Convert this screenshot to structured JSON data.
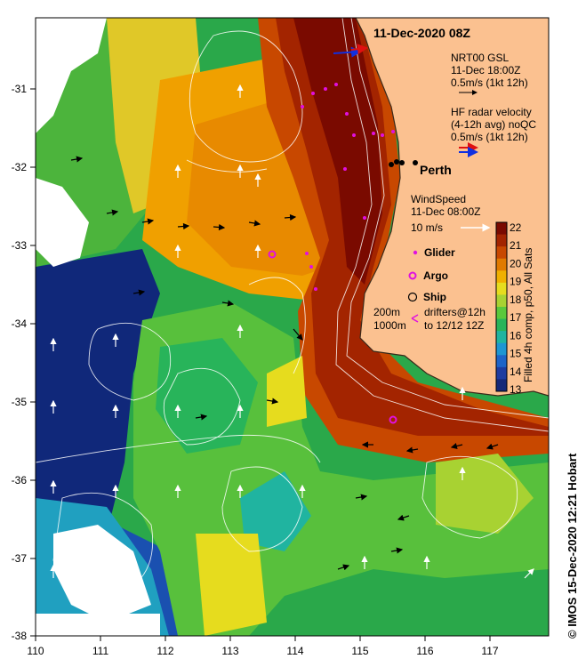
{
  "title": "11-Dec-2020 08Z",
  "city": "Perth",
  "axes": {
    "x_ticks": [
      "110",
      "111",
      "112",
      "113",
      "114",
      "115",
      "116",
      "117"
    ],
    "y_ticks": [
      "-31",
      "-32",
      "-33",
      "-34",
      "-35",
      "-36",
      "-37",
      "-38"
    ]
  },
  "legend": {
    "gsl": [
      "NRT00 GSL",
      "11-Dec 18:00Z",
      "0.5m/s (1kt 12h)"
    ],
    "hf": [
      "HF radar velocity",
      "(4-12h avg) noQC",
      "0.5m/s (1kt 12h)"
    ],
    "wind": [
      "WindSpeed",
      "11-Dec 08:00Z",
      "10 m/s"
    ],
    "glider": "Glider",
    "argo": "Argo",
    "ship": "Ship",
    "depth_200": "200m",
    "depth_1000": "1000m",
    "drifters_1": "drifters@12h",
    "drifters_2": "to 12/12 12Z"
  },
  "colorbar": {
    "label": "Filled 4h comp, p50, All Sats",
    "ticks": [
      "22",
      "21",
      "20",
      "19",
      "18",
      "17",
      "16",
      "15",
      "14",
      "13"
    ],
    "colors": [
      "#7a0a00",
      "#a32400",
      "#c84800",
      "#e07a00",
      "#f0b000",
      "#e6dc1e",
      "#a8d232",
      "#5ac83c",
      "#28b45a",
      "#20b4a0",
      "#1e96d2",
      "#1e64c8",
      "#1e3ca0",
      "#142878"
    ]
  },
  "credit": "© IMOS 15-Dec-2020 12:21 Hobart",
  "colors": {
    "land": "#fbc190",
    "coast": "#3a2a1a",
    "cloud": "#ffffff",
    "deep_blue": "#10287a",
    "warm": "#a52a00"
  }
}
